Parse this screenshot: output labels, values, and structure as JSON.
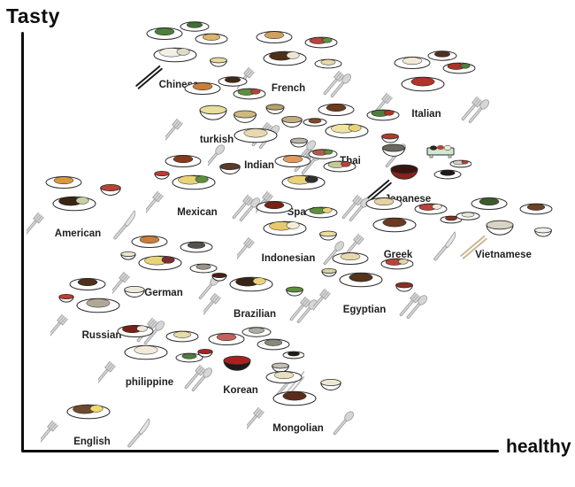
{
  "axes": {
    "y_label": "Tasty",
    "x_label": "healthy",
    "axis_color": "#0d0d0d"
  },
  "chart_data": {
    "type": "scatter",
    "title": "",
    "xlabel": "healthy",
    "ylabel": "Tasty",
    "xlim": [
      0,
      100
    ],
    "ylim": [
      0,
      100
    ],
    "grid": false,
    "legend": "none",
    "note_units": "axes are unlabeled; values are normalized 0-100 estimates of each cuisine cluster position",
    "points": [
      {
        "label": "Chinese",
        "healthy": 34,
        "tasty": 93,
        "utensils": {
          "chopsticks": "black"
        },
        "dishes": [
          {
            "t": "plate",
            "c": "#4e7d3c"
          },
          {
            "t": "plate",
            "c": "#dcb56a"
          },
          {
            "t": "plate",
            "c": "#f3efe4",
            "c2": "#e0dac8"
          },
          {
            "t": "bowl",
            "c": "#ead9a0",
            "slot": 3
          },
          {
            "t": "plate",
            "c": "#3f6f35",
            "slot": 5
          }
        ]
      },
      {
        "label": "French",
        "healthy": 57,
        "tasty": 92,
        "utensils": {
          "left": "fork",
          "right": "forkspoon"
        },
        "dishes": [
          {
            "t": "plate",
            "c": "#cfa05f"
          },
          {
            "t": "plate",
            "c": "#b8433a",
            "c2": "#5f8f3f"
          },
          {
            "t": "plate",
            "c": "#4e2f1a",
            "c2": "#efe7d3"
          },
          {
            "t": "plate",
            "c": "#e8d9a8",
            "slot": 3
          }
        ]
      },
      {
        "label": "Italian",
        "healthy": 86,
        "tasty": 86,
        "utensils": {
          "left": "fork",
          "right": "forkspoon"
        },
        "dishes": [
          {
            "t": "plate",
            "c": "#f1ead6"
          },
          {
            "t": "plate",
            "c": "#a83327",
            "c2": "#4e7d3c"
          },
          {
            "t": "plate",
            "c": "#b03427"
          },
          {
            "t": "plate",
            "c": "#52301b",
            "slot": 5
          }
        ]
      },
      {
        "label": "turkish",
        "healthy": 42,
        "tasty": 80,
        "utensils": {
          "left": "fork",
          "right": "forkspoon"
        },
        "dishes": [
          {
            "t": "plate",
            "c": "#c97e3a"
          },
          {
            "t": "plate",
            "c": "#5f8f3f",
            "c2": "#b8433a"
          },
          {
            "t": "bowl",
            "c": "#e9dd9f",
            "slot": 2
          },
          {
            "t": "plate",
            "c": "#3f2a18",
            "slot": 5
          }
        ]
      },
      {
        "label": "Indian",
        "healthy": 51,
        "tasty": 74,
        "utensils": {
          "left": "spoon",
          "right": "forkspoon"
        },
        "dishes": [
          {
            "t": "bowl",
            "c": "#cdb97e",
            "slot": 0
          },
          {
            "t": "bowl",
            "c": "#b8a06a",
            "slot": 5
          },
          {
            "t": "bowl",
            "c": "#c4ad85",
            "slot": 1
          },
          {
            "t": "plate",
            "c": "#e7d8ae",
            "slot": 2
          },
          {
            "t": "bowl",
            "c": "#b8b4a8",
            "slot": 3
          }
        ]
      },
      {
        "label": "Thai",
        "healthy": 70,
        "tasty": 75,
        "utensils": {
          "left": "spoon",
          "right": "spoon"
        },
        "dishes": [
          {
            "t": "plate",
            "c": "#6b3b1d",
            "slot": 0
          },
          {
            "t": "plate",
            "c": "#4e7d3c",
            "c2": "#b03427",
            "slot": 1
          },
          {
            "t": "plate",
            "c": "#7d4a28",
            "slot": 4
          },
          {
            "t": "plate",
            "c": "#f0e4a2",
            "c2": "#ead279",
            "slot": 2
          },
          {
            "t": "bowl",
            "c": "#b23a2a",
            "slot": 3
          }
        ]
      },
      {
        "label": "Japanese",
        "healthy": 82,
        "tasty": 66,
        "utensils": {
          "chopsticks": "black"
        },
        "dishes": [
          {
            "t": "bowl",
            "c": "#6a675f",
            "slot": 0
          },
          {
            "t": "board",
            "c": "#cfe8d2",
            "slot": 1
          },
          {
            "t": "bowl",
            "c": "#3a1510",
            "body": "#8a2318",
            "slot": 2
          },
          {
            "t": "plate",
            "c": "#1e1a18",
            "slot": 3
          },
          {
            "t": "plate",
            "c": "#d8cfc3",
            "c2": "#b8433a",
            "slot": 6
          }
        ]
      },
      {
        "label": "Mexican",
        "healthy": 38,
        "tasty": 63,
        "utensils": {
          "left": "fork",
          "right": "forkspoon"
        },
        "dishes": [
          {
            "t": "plate",
            "c": "#8a3a1c",
            "slot": 0
          },
          {
            "t": "bowl",
            "c": "#5a3a28",
            "slot": 1
          },
          {
            "t": "plate",
            "c": "#ead279",
            "c2": "#5f8f3f",
            "slot": 2
          },
          {
            "t": "bowl",
            "c": "#c4392e",
            "slot": 4
          }
        ]
      },
      {
        "label": "Spanish",
        "healthy": 61,
        "tasty": 63,
        "utensils": {
          "left": "fork",
          "right": "forkspoon"
        },
        "dishes": [
          {
            "t": "plate",
            "c": "#e09a5f",
            "slot": 0
          },
          {
            "t": "plate",
            "c": "#c8c89a",
            "c2": "#b8433a",
            "slot": 1
          },
          {
            "t": "plate",
            "c": "#ead279",
            "c2": "#2f2f2f",
            "slot": 2
          },
          {
            "t": "plate",
            "c": "#b05a4a",
            "c2": "#5f8f3f",
            "slot": 5
          }
        ]
      },
      {
        "label": "American",
        "healthy": 13,
        "tasty": 58,
        "utensils": {
          "left": "fork",
          "right": "knife"
        },
        "dishes": [
          {
            "t": "plate",
            "c": "#d9983f"
          },
          {
            "t": "bowl",
            "c": "#b8433a",
            "slot": 1
          },
          {
            "t": "plate",
            "c": "#3a2415",
            "c2": "#c9cf9f",
            "slot": 2
          }
        ]
      },
      {
        "label": "Indonesian",
        "healthy": 57,
        "tasty": 52,
        "utensils": {
          "left": "fork",
          "right": "spoon"
        },
        "dishes": [
          {
            "t": "plate",
            "c": "#7a2014"
          },
          {
            "t": "plate",
            "c": "#5f8f3f",
            "c2": "#ead279",
            "slot": 1
          },
          {
            "t": "plate",
            "c": "#e8c96a",
            "c2": "#f5efd8",
            "slot": 2
          },
          {
            "t": "bowl",
            "c": "#ead9a0",
            "slot": 3
          }
        ]
      },
      {
        "label": "Greek",
        "healthy": 80,
        "tasty": 53,
        "utensils": {
          "left": "fork",
          "right": "knife"
        },
        "dishes": [
          {
            "t": "plate",
            "c": "#e4d2a2"
          },
          {
            "t": "plate",
            "c": "#b8433a",
            "c2": "#f1ead6",
            "slot": 1
          },
          {
            "t": "plate",
            "c": "#6b3a20",
            "slot": 2
          },
          {
            "t": "plate",
            "c": "#8a2f20",
            "slot": 6
          }
        ]
      },
      {
        "label": "Vietnamese",
        "healthy": 102,
        "tasty": 53,
        "utensils": {
          "chopsticks": "tan"
        },
        "dishes": [
          {
            "t": "plate",
            "c": "#3d5c2c",
            "slot": 0
          },
          {
            "t": "plate",
            "c": "#6b4226",
            "slot": 1
          },
          {
            "t": "bowl",
            "c": "#d8d3c3",
            "slot": 2
          },
          {
            "t": "bowl",
            "c": "#f3efe4",
            "slot": 3
          },
          {
            "t": "plate",
            "c": "#eae5d5",
            "slot": 4
          }
        ]
      },
      {
        "label": "German",
        "healthy": 31,
        "tasty": 44,
        "utensils": {
          "left": "fork",
          "right": "spoon"
        },
        "dishes": [
          {
            "t": "plate",
            "c": "#c97e3a"
          },
          {
            "t": "plate",
            "c": "#55504a",
            "slot": 1
          },
          {
            "t": "plate",
            "c": "#ead279",
            "c2": "#7a2d30",
            "slot": 2
          },
          {
            "t": "plate",
            "c": "#9a9488",
            "slot": 3
          },
          {
            "t": "bowl",
            "c": "#ece6cc",
            "slot": 4
          }
        ]
      },
      {
        "label": "Brazilian",
        "healthy": 50,
        "tasty": 39,
        "utensils": {
          "left": "fork",
          "right": "forkspoon"
        },
        "dishes": [
          {
            "t": "plate",
            "c": "#3a2415",
            "c2": "#ead279",
            "slot": 2
          },
          {
            "t": "bowl",
            "c": "#4e1c14",
            "slot": 4
          },
          {
            "t": "bowl",
            "c": "#5f8f3f",
            "slot": 3
          }
        ]
      },
      {
        "label": "Egyptian",
        "healthy": 73,
        "tasty": 40,
        "utensils": {
          "left": "fork",
          "right": "forkspoon"
        },
        "dishes": [
          {
            "t": "plate",
            "c": "#e7d8ae",
            "slot": 0
          },
          {
            "t": "plate",
            "c": "#b8433a",
            "c2": "#e0d4aa",
            "slot": 1
          },
          {
            "t": "bowl",
            "c": "#ded0a0",
            "slot": 4
          },
          {
            "t": "bowl",
            "c": "#8a2f20",
            "slot": 3
          },
          {
            "t": "plate",
            "c": "#55341c",
            "slot": 2
          }
        ]
      },
      {
        "label": "Russian",
        "healthy": 18,
        "tasty": 34,
        "utensils": {
          "left": "fork",
          "right": "forkspoon"
        },
        "dishes": [
          {
            "t": "plate",
            "c": "#4e2f1a"
          },
          {
            "t": "bowl",
            "c": "#efe9dc",
            "slot": 1
          },
          {
            "t": "plate",
            "c": "#b0a894",
            "slot": 2
          },
          {
            "t": "bowl",
            "c": "#c4392e",
            "slot": 4
          }
        ]
      },
      {
        "label": "philippine",
        "healthy": 28,
        "tasty": 23,
        "utensils": {
          "left": "fork",
          "right": "forkspoon"
        },
        "dishes": [
          {
            "t": "plate",
            "c": "#7a2014",
            "c2": "#efe9dc",
            "slot": 0
          },
          {
            "t": "plate",
            "c": "#e8dca6",
            "slot": 1
          },
          {
            "t": "plate",
            "c": "#4e7d3c",
            "slot": 3
          },
          {
            "t": "plate",
            "c": "#f1ead9",
            "slot": 2
          }
        ]
      },
      {
        "label": "Korean",
        "healthy": 47,
        "tasty": 21,
        "utensils": {
          "right": "spoonchopsticks"
        },
        "dishes": [
          {
            "t": "plate",
            "c": "#c4605a",
            "slot": 0
          },
          {
            "t": "plate",
            "c": "#b0ab9e",
            "slot": 5
          },
          {
            "t": "plate",
            "c": "#8a867a",
            "slot": 1
          },
          {
            "t": "plate",
            "c": "#1e1a18",
            "slot": 6
          },
          {
            "t": "bowl",
            "c": "#a8231e",
            "slot": 4
          },
          {
            "t": "bowl",
            "c": "#a8231e",
            "body": "#1e1a18",
            "slot": 2
          },
          {
            "t": "bowl",
            "c": "#c3bfb5",
            "slot": 3
          }
        ]
      },
      {
        "label": "Mongolian",
        "healthy": 59,
        "tasty": 12,
        "utensils": {
          "left": "fork",
          "right": "spoon"
        },
        "dishes": [
          {
            "t": "plate",
            "c": "#e8dfc3"
          },
          {
            "t": "bowl",
            "c": "#efe9d3",
            "slot": 1
          },
          {
            "t": "plate",
            "c": "#5a2d1a",
            "slot": 2
          }
        ]
      },
      {
        "label": "English",
        "healthy": 16,
        "tasty": 9,
        "utensils": {
          "left": "fork",
          "right": "knife"
        },
        "dishes": [
          {
            "t": "plate",
            "c": "#6e4a2f",
            "c2": "#efd96a",
            "slot": 2
          }
        ]
      }
    ]
  }
}
